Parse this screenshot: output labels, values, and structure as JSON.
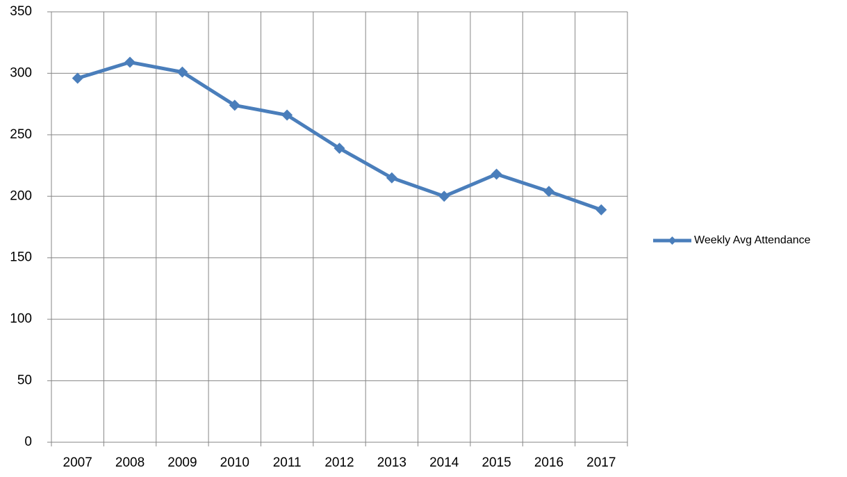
{
  "chart_data": {
    "type": "line",
    "categories": [
      "2007",
      "2008",
      "2009",
      "2010",
      "2011",
      "2012",
      "2013",
      "2014",
      "2015",
      "2016",
      "2017"
    ],
    "series": [
      {
        "name": "Weekly Avg Attendance",
        "color": "#4a7ebb",
        "values": [
          296,
          309,
          301,
          274,
          266,
          239,
          215,
          200,
          218,
          204,
          189
        ]
      }
    ],
    "ylim": [
      0,
      350
    ],
    "yticks": [
      0,
      50,
      100,
      150,
      200,
      250,
      300,
      350
    ],
    "grid": true,
    "legend": "right"
  }
}
